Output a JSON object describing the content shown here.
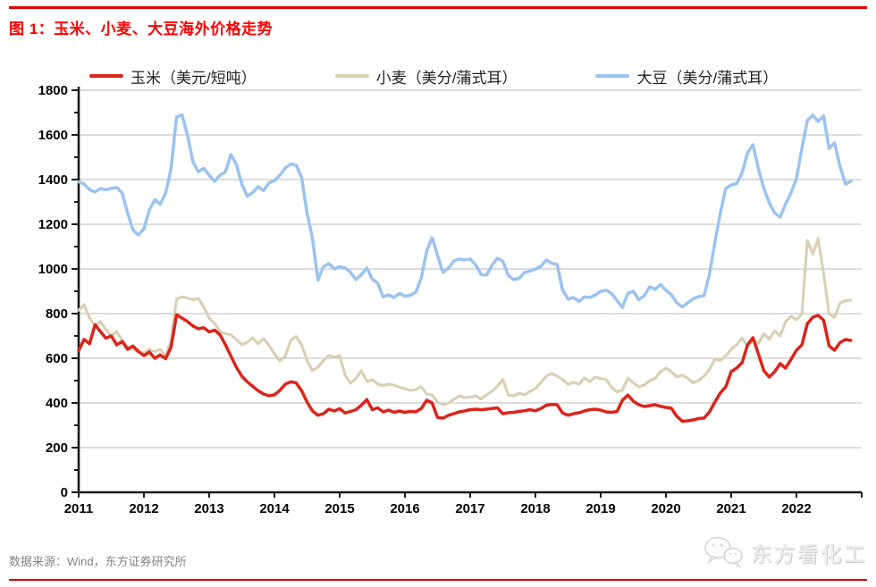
{
  "header": {
    "title": "图 1：玉米、小麦、大豆海外价格走势"
  },
  "footer": {
    "source": "数据来源：Wind，东方证券研究所",
    "watermark": "东方看化工"
  },
  "colors": {
    "rule_red": "#e30000",
    "title_red": "#fe0000",
    "corn_red": "#db241b",
    "wheat_tan": "#d9cfb4",
    "soybean_blue": "#9cc3ef",
    "grid_gray": "#c8c8c8",
    "axis_black": "#1a1a1a",
    "footer_gray": "#848484"
  },
  "chart_data": {
    "type": "line",
    "title": "图 1：玉米、小麦、大豆海外价格走势",
    "x_start": "2011-01",
    "points_per_year": 12,
    "x_tick_labels": [
      "2011",
      "2012",
      "2013",
      "2014",
      "2015",
      "2016",
      "2017",
      "2018",
      "2019",
      "2020",
      "2021",
      "2022"
    ],
    "ylim": [
      0,
      1800
    ],
    "y_tick_step": 200,
    "y_minor_tick_step": 100,
    "y_tick_labels": [
      "0",
      "200",
      "400",
      "600",
      "800",
      "1000",
      "1200",
      "1400",
      "1600",
      "1800"
    ],
    "grid": "horizontal",
    "legend_position": "top",
    "xlabel": "",
    "ylabel": "",
    "series": [
      {
        "name": "玉米（美元/短吨）",
        "color": "#db241b",
        "values": [
          635,
          685,
          665,
          750,
          720,
          690,
          700,
          660,
          675,
          640,
          655,
          630,
          612,
          628,
          600,
          615,
          598,
          650,
          795,
          780,
          765,
          745,
          732,
          737,
          718,
          726,
          705,
          660,
          610,
          560,
          520,
          495,
          475,
          455,
          440,
          432,
          436,
          456,
          484,
          495,
          490,
          455,
          404,
          364,
          345,
          352,
          372,
          364,
          375,
          355,
          362,
          370,
          390,
          415,
          370,
          378,
          360,
          368,
          358,
          364,
          358,
          362,
          360,
          375,
          412,
          400,
          335,
          332,
          345,
          352,
          360,
          364,
          370,
          372,
          370,
          372,
          375,
          378,
          352,
          356,
          358,
          362,
          365,
          370,
          365,
          375,
          390,
          393,
          392,
          355,
          345,
          352,
          356,
          364,
          370,
          372,
          368,
          360,
          358,
          362,
          412,
          435,
          408,
          392,
          384,
          388,
          392,
          385,
          380,
          376,
          340,
          318,
          320,
          324,
          330,
          332,
          360,
          404,
          445,
          472,
          540,
          556,
          580,
          660,
          692,
          620,
          545,
          516,
          540,
          576,
          556,
          595,
          636,
          660,
          755,
          784,
          792,
          770,
          656,
          636,
          670,
          684,
          680
        ]
      },
      {
        "name": "小麦（美分/蒲式耳）",
        "color": "#d9cfb4",
        "values": [
          815,
          840,
          780,
          745,
          765,
          730,
          700,
          720,
          680,
          650,
          640,
          628,
          625,
          640,
          630,
          640,
          610,
          680,
          865,
          875,
          870,
          862,
          868,
          830,
          780,
          755,
          720,
          710,
          705,
          685,
          660,
          672,
          692,
          665,
          688,
          658,
          620,
          588,
          610,
          680,
          698,
          660,
          590,
          545,
          560,
          590,
          612,
          605,
          612,
          524,
          488,
          510,
          545,
          496,
          505,
          484,
          478,
          484,
          480,
          470,
          464,
          456,
          460,
          472,
          440,
          436,
          404,
          392,
          400,
          416,
          432,
          424,
          426,
          432,
          418,
          436,
          452,
          475,
          505,
          436,
          432,
          444,
          436,
          452,
          464,
          492,
          520,
          532,
          520,
          504,
          484,
          492,
          484,
          512,
          496,
          516,
          510,
          504,
          470,
          450,
          456,
          512,
          490,
          472,
          480,
          500,
          510,
          540,
          556,
          540,
          516,
          525,
          510,
          490,
          500,
          520,
          550,
          596,
          590,
          610,
          640,
          660,
          690,
          655,
          684,
          666,
          710,
          686,
          722,
          700,
          764,
          788,
          772,
          800,
          1128,
          1066,
          1136,
          980,
          800,
          782,
          846,
          858,
          860
        ]
      },
      {
        "name": "大豆（美分/蒲式耳）",
        "color": "#9cc3ef",
        "values": [
          1390,
          1380,
          1355,
          1345,
          1360,
          1355,
          1360,
          1365,
          1340,
          1250,
          1175,
          1152,
          1180,
          1265,
          1310,
          1290,
          1340,
          1450,
          1680,
          1690,
          1600,
          1480,
          1435,
          1450,
          1420,
          1392,
          1420,
          1435,
          1512,
          1468,
          1380,
          1326,
          1342,
          1368,
          1350,
          1385,
          1395,
          1420,
          1452,
          1470,
          1465,
          1410,
          1250,
          1136,
          950,
          1010,
          1024,
          1000,
          1010,
          1004,
          985,
          952,
          975,
          1004,
          955,
          936,
          875,
          884,
          872,
          890,
          878,
          882,
          896,
          960,
          1080,
          1140,
          1060,
          984,
          1004,
          1036,
          1044,
          1040,
          1044,
          1020,
          975,
          972,
          1016,
          1048,
          1035,
          970,
          952,
          958,
          984,
          990,
          1000,
          1012,
          1040,
          1025,
          1020,
          905,
          865,
          872,
          855,
          875,
          872,
          884,
          900,
          905,
          890,
          858,
          828,
          890,
          900,
          862,
          880,
          920,
          908,
          930,
          905,
          885,
          848,
          830,
          848,
          866,
          876,
          880,
          976,
          1120,
          1250,
          1360,
          1376,
          1382,
          1430,
          1520,
          1556,
          1450,
          1360,
          1296,
          1250,
          1232,
          1290,
          1340,
          1405,
          1540,
          1665,
          1688,
          1660,
          1685,
          1540,
          1565,
          1460,
          1380,
          1392
        ]
      }
    ]
  }
}
